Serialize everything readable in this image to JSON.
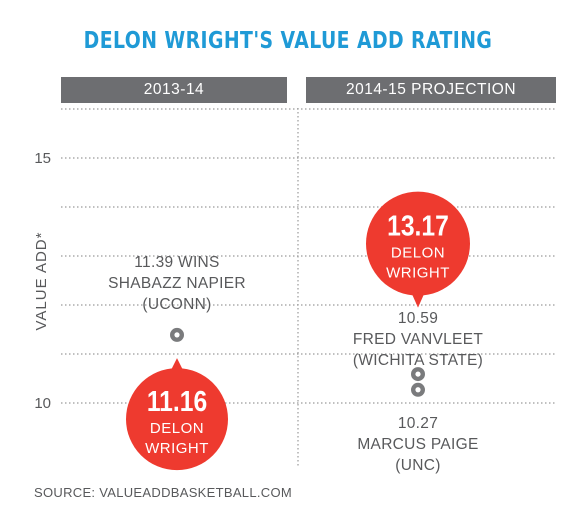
{
  "chart_data": {
    "type": "scatter",
    "title": "DELON WRIGHT'S VALUE ADD RATING",
    "ylabel": "VALUE ADD*",
    "yticks": [
      10,
      15
    ],
    "ylim": [
      9.1,
      16.1
    ],
    "grid": true,
    "columns": [
      "2013-14",
      "2014-15 PROJECTION"
    ],
    "points": [
      {
        "column": 0,
        "y": 11.39,
        "line1": "11.39 WINS",
        "line2": "SHABAZZ NAPIER",
        "line3": "(UCONN)",
        "highlight": false
      },
      {
        "column": 0,
        "y": 11.16,
        "line1": "11.16",
        "line2": "DELON",
        "line3": "WRIGHT",
        "highlight": true
      },
      {
        "column": 1,
        "y": 13.17,
        "line1": "13.17",
        "line2": "DELON",
        "line3": "WRIGHT",
        "highlight": true
      },
      {
        "column": 1,
        "y": 10.59,
        "line1": "10.59",
        "line2": "FRED VANVLEET",
        "line3": "(WICHITA STATE)",
        "highlight": false
      },
      {
        "column": 1,
        "y": 10.27,
        "line1": "10.27",
        "line2": "MARCUS PAIGE",
        "line3": "(UNC)",
        "highlight": false
      }
    ]
  },
  "colors": {
    "title": "#1f9ad6",
    "header": "#6d6e71",
    "highlight": "#ee3a2f",
    "marker": "#7a7b7d",
    "text": "#58595b"
  },
  "source": "SOURCE: VALUEADDBASKETBALL.COM"
}
